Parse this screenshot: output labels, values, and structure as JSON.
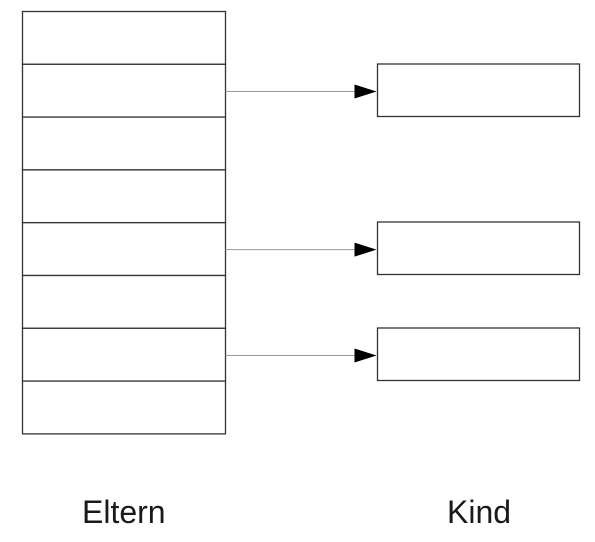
{
  "labels": {
    "parent": "Eltern",
    "child": "Kind"
  },
  "parent_slots": 8,
  "links": [
    {
      "from_slot": 2,
      "to_child": 1
    },
    {
      "from_slot": 5,
      "to_child": 2
    },
    {
      "from_slot": 7,
      "to_child": 3
    }
  ],
  "child_boxes": 3,
  "colors": {
    "stroke": "#333333",
    "arrow_line": "#999999",
    "arrow_head": "#000000"
  }
}
